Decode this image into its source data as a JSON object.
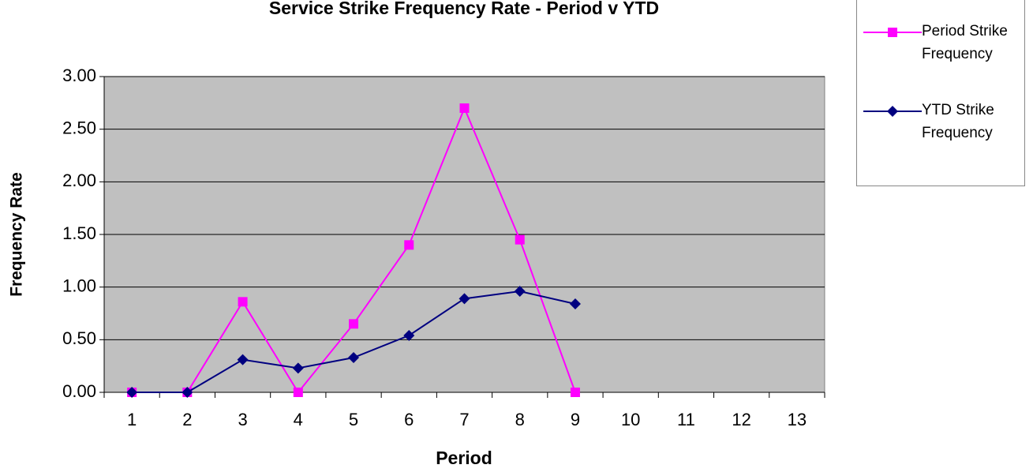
{
  "chart_data": {
    "type": "line",
    "title": "Service Strike Frequency Rate - Period v YTD",
    "x_label": "Period",
    "y_label": "Frequency Rate",
    "categories": [
      "1",
      "2",
      "3",
      "4",
      "5",
      "6",
      "7",
      "8",
      "9",
      "10",
      "11",
      "12",
      "13"
    ],
    "series": [
      {
        "name": "Period Strike Frequency",
        "color": "#ff00ff",
        "marker": "square",
        "values": [
          0,
          0,
          0.86,
          0,
          0.65,
          1.4,
          2.7,
          1.45,
          0,
          null,
          null,
          null,
          null
        ]
      },
      {
        "name": "YTD Strike Frequency",
        "color": "#000080",
        "marker": "diamond",
        "values": [
          0,
          0,
          0.31,
          0.23,
          0.33,
          0.54,
          0.89,
          0.96,
          0.84,
          null,
          null,
          null,
          null
        ]
      }
    ],
    "ylim": [
      0,
      3
    ],
    "yticks": [
      {
        "value": 0,
        "label": "0.00"
      },
      {
        "value": 0.5,
        "label": "0.50"
      },
      {
        "value": 1,
        "label": "1.00"
      },
      {
        "value": 1.5,
        "label": "1.50"
      },
      {
        "value": 2,
        "label": "2.00"
      },
      {
        "value": 2.5,
        "label": "2.50"
      },
      {
        "value": 3,
        "label": "3.00"
      }
    ],
    "grid": true,
    "legend": "upper right"
  }
}
